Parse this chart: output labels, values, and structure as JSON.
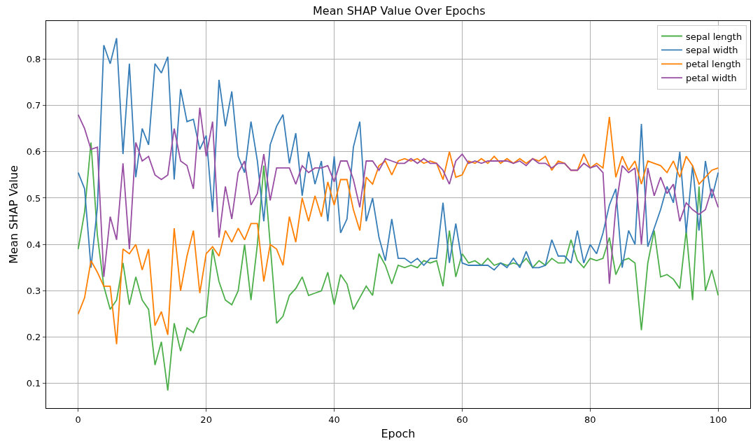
{
  "chart_data": {
    "type": "line",
    "title": "Mean SHAP Value Over Epochs",
    "xlabel": "Epoch",
    "ylabel": "Mean SHAP Value",
    "x": [
      0,
      1,
      2,
      3,
      4,
      5,
      6,
      7,
      8,
      9,
      10,
      11,
      12,
      13,
      14,
      15,
      16,
      17,
      18,
      19,
      20,
      21,
      22,
      23,
      24,
      25,
      26,
      27,
      28,
      29,
      30,
      31,
      32,
      33,
      34,
      35,
      36,
      37,
      38,
      39,
      40,
      41,
      42,
      43,
      44,
      45,
      46,
      47,
      48,
      49,
      50,
      51,
      52,
      53,
      54,
      55,
      56,
      57,
      58,
      59,
      60,
      61,
      62,
      63,
      64,
      65,
      66,
      67,
      68,
      69,
      70,
      71,
      72,
      73,
      74,
      75,
      76,
      77,
      78,
      79,
      80,
      81,
      82,
      83,
      84,
      85,
      86,
      87,
      88,
      89,
      90,
      91,
      92,
      93,
      94,
      95,
      96,
      97,
      98,
      99,
      100
    ],
    "series": [
      {
        "name": "sepal length",
        "color": "#4daf4a",
        "values": [
          0.39,
          0.47,
          0.62,
          0.42,
          0.31,
          0.26,
          0.28,
          0.36,
          0.27,
          0.33,
          0.28,
          0.26,
          0.14,
          0.19,
          0.085,
          0.23,
          0.17,
          0.22,
          0.21,
          0.24,
          0.245,
          0.39,
          0.32,
          0.28,
          0.27,
          0.3,
          0.4,
          0.28,
          0.4,
          0.57,
          0.4,
          0.23,
          0.245,
          0.29,
          0.305,
          0.33,
          0.29,
          0.295,
          0.3,
          0.34,
          0.27,
          0.335,
          0.315,
          0.26,
          0.285,
          0.31,
          0.29,
          0.38,
          0.355,
          0.315,
          0.355,
          0.35,
          0.355,
          0.35,
          0.365,
          0.36,
          0.365,
          0.31,
          0.43,
          0.33,
          0.38,
          0.36,
          0.365,
          0.355,
          0.37,
          0.355,
          0.36,
          0.355,
          0.36,
          0.355,
          0.37,
          0.35,
          0.365,
          0.355,
          0.37,
          0.36,
          0.36,
          0.41,
          0.365,
          0.35,
          0.37,
          0.365,
          0.37,
          0.415,
          0.335,
          0.365,
          0.37,
          0.36,
          0.215,
          0.36,
          0.43,
          0.33,
          0.335,
          0.325,
          0.305,
          0.43,
          0.28,
          0.525,
          0.3,
          0.345,
          0.29
        ]
      },
      {
        "name": "sepal width",
        "color": "#377eb8",
        "values": [
          0.555,
          0.52,
          0.35,
          0.48,
          0.83,
          0.79,
          0.845,
          0.595,
          0.79,
          0.545,
          0.65,
          0.615,
          0.79,
          0.77,
          0.805,
          0.54,
          0.735,
          0.665,
          0.67,
          0.605,
          0.635,
          0.47,
          0.755,
          0.655,
          0.73,
          0.59,
          0.555,
          0.665,
          0.58,
          0.45,
          0.615,
          0.655,
          0.68,
          0.575,
          0.64,
          0.505,
          0.6,
          0.53,
          0.58,
          0.45,
          0.59,
          0.425,
          0.455,
          0.61,
          0.665,
          0.45,
          0.5,
          0.415,
          0.365,
          0.455,
          0.37,
          0.37,
          0.36,
          0.37,
          0.355,
          0.37,
          0.37,
          0.49,
          0.36,
          0.445,
          0.36,
          0.355,
          0.355,
          0.355,
          0.355,
          0.345,
          0.36,
          0.35,
          0.37,
          0.35,
          0.385,
          0.35,
          0.35,
          0.355,
          0.41,
          0.375,
          0.375,
          0.36,
          0.43,
          0.36,
          0.4,
          0.38,
          0.425,
          0.485,
          0.52,
          0.35,
          0.43,
          0.4,
          0.66,
          0.395,
          0.435,
          0.475,
          0.525,
          0.49,
          0.6,
          0.425,
          0.57,
          0.43,
          0.58,
          0.5,
          0.555
        ]
      },
      {
        "name": "petal length",
        "color": "#ff7f00",
        "values": [
          0.25,
          0.285,
          0.365,
          0.34,
          0.31,
          0.31,
          0.185,
          0.39,
          0.38,
          0.4,
          0.345,
          0.39,
          0.225,
          0.255,
          0.205,
          0.435,
          0.3,
          0.375,
          0.43,
          0.295,
          0.38,
          0.395,
          0.375,
          0.43,
          0.405,
          0.435,
          0.41,
          0.445,
          0.445,
          0.32,
          0.4,
          0.39,
          0.355,
          0.46,
          0.405,
          0.5,
          0.45,
          0.505,
          0.46,
          0.535,
          0.485,
          0.54,
          0.54,
          0.475,
          0.43,
          0.545,
          0.53,
          0.57,
          0.58,
          0.55,
          0.58,
          0.585,
          0.58,
          0.585,
          0.575,
          0.58,
          0.575,
          0.54,
          0.6,
          0.545,
          0.55,
          0.58,
          0.575,
          0.585,
          0.575,
          0.59,
          0.575,
          0.585,
          0.575,
          0.585,
          0.575,
          0.585,
          0.58,
          0.59,
          0.56,
          0.58,
          0.575,
          0.56,
          0.56,
          0.595,
          0.565,
          0.575,
          0.565,
          0.675,
          0.545,
          0.59,
          0.56,
          0.58,
          0.53,
          0.58,
          0.575,
          0.57,
          0.555,
          0.58,
          0.545,
          0.59,
          0.57,
          0.53,
          0.545,
          0.56,
          0.565
        ]
      },
      {
        "name": "petal width",
        "color": "#984ea3",
        "values": [
          0.68,
          0.65,
          0.605,
          0.61,
          0.33,
          0.46,
          0.41,
          0.575,
          0.39,
          0.62,
          0.58,
          0.59,
          0.55,
          0.54,
          0.55,
          0.65,
          0.58,
          0.57,
          0.52,
          0.695,
          0.59,
          0.665,
          0.415,
          0.525,
          0.455,
          0.555,
          0.58,
          0.485,
          0.51,
          0.595,
          0.495,
          0.565,
          0.565,
          0.565,
          0.53,
          0.57,
          0.555,
          0.565,
          0.565,
          0.57,
          0.535,
          0.58,
          0.58,
          0.54,
          0.48,
          0.58,
          0.58,
          0.56,
          0.585,
          0.58,
          0.575,
          0.575,
          0.585,
          0.575,
          0.585,
          0.575,
          0.575,
          0.56,
          0.53,
          0.58,
          0.595,
          0.575,
          0.58,
          0.575,
          0.58,
          0.58,
          0.58,
          0.58,
          0.575,
          0.58,
          0.57,
          0.585,
          0.575,
          0.575,
          0.565,
          0.575,
          0.575,
          0.56,
          0.56,
          0.575,
          0.565,
          0.57,
          0.555,
          0.315,
          0.48,
          0.57,
          0.555,
          0.565,
          0.4,
          0.565,
          0.505,
          0.545,
          0.51,
          0.53,
          0.45,
          0.49,
          0.475,
          0.465,
          0.475,
          0.52,
          0.48
        ]
      }
    ],
    "xlim": [
      -5,
      105
    ],
    "xticks": [
      0,
      20,
      40,
      60,
      80,
      100
    ],
    "ylim": [
      0.047,
      0.882
    ],
    "yticks": [
      0.1,
      0.2,
      0.3,
      0.4,
      0.5,
      0.6,
      0.7,
      0.8
    ],
    "grid": true,
    "legend": "top right",
    "marker": "none",
    "line_style": "solid"
  }
}
